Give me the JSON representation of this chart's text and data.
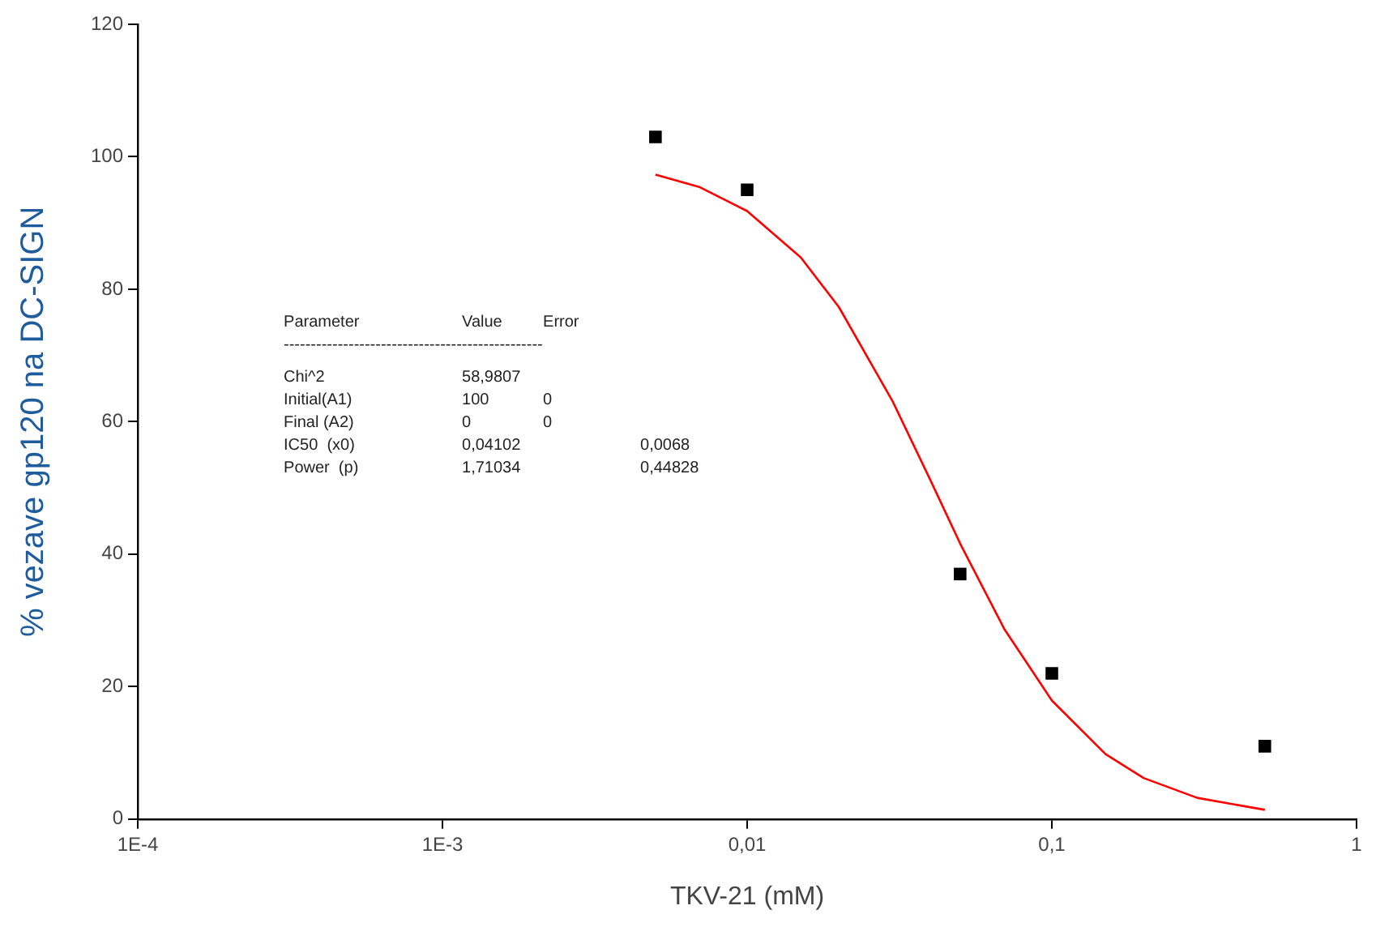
{
  "chart_data": {
    "type": "scatter",
    "xlabel": "TKV-21 (mM)",
    "ylabel": "% vezave gp120 na DC-SIGN",
    "log": "x",
    "marker": "square",
    "grid": false,
    "legend": false,
    "series": [
      {
        "color": "#000000",
        "x": [
          0.005,
          0.01,
          0.05,
          0.1,
          0.5
        ],
        "values": [
          103,
          95,
          37,
          22,
          11
        ]
      },
      {
        "type": "line",
        "color": "#ff0000",
        "marker": "none",
        "x": [
          0.005,
          0.007,
          0.01,
          0.015,
          0.02,
          0.03,
          0.04,
          0.05,
          0.07,
          0.1,
          0.15,
          0.2,
          0.3,
          0.5
        ],
        "values": [
          97.3,
          95.4,
          91.8,
          84.8,
          77.3,
          63.1,
          51.1,
          41.6,
          28.6,
          17.9,
          9.8,
          6.2,
          3.2,
          1.4
        ]
      }
    ],
    "xlim": [
      0.0001,
      1
    ],
    "xticks": [
      {
        "value": 0.0001,
        "label": "1E-4"
      },
      {
        "value": 0.001,
        "label": "1E-3"
      },
      {
        "value": 0.01,
        "label": "0,01"
      },
      {
        "value": 0.1,
        "label": "0,1"
      },
      1
    ],
    "ylim": [
      0,
      120
    ],
    "yticks": [
      0,
      20,
      40,
      60,
      80,
      100,
      120
    ],
    "annotations": [
      "Parameter\tValue\tError",
      "------------------------------------------------",
      "Chi^2\t58,9807",
      "Initial(A1)\t100\t0",
      "Final (A2)\t0\t0",
      "IC50  (x0)\t0,04102\t\t0,0068",
      "Power  (p)\t1,71034\t\t0,44828"
    ]
  }
}
